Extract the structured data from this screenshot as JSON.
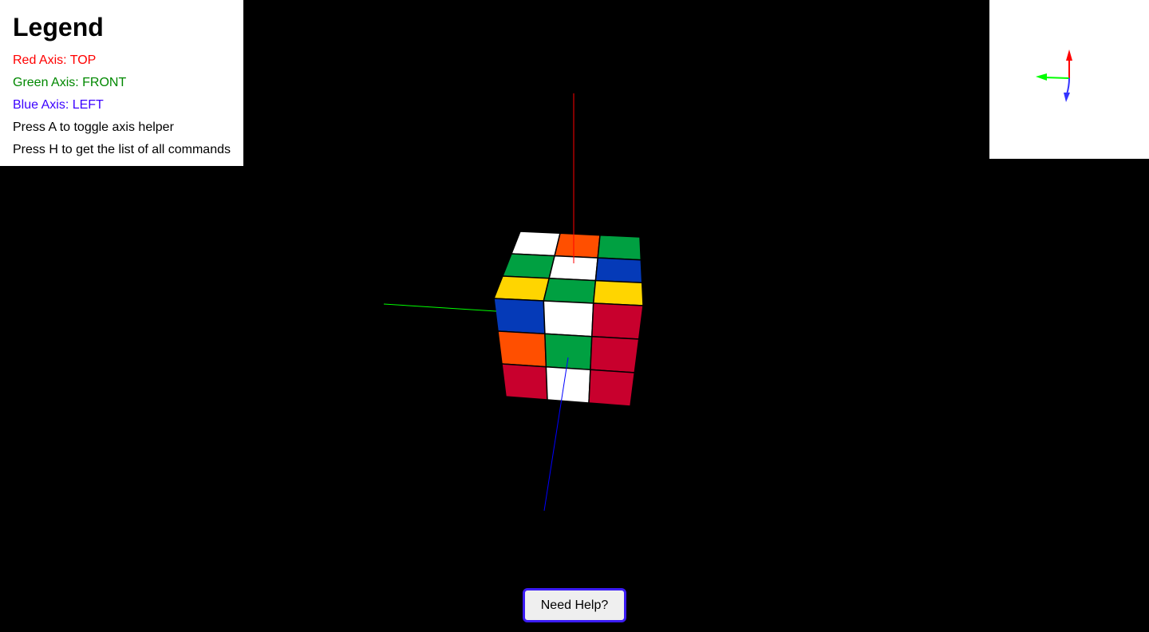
{
  "legend": {
    "title": "Legend",
    "lines": [
      {
        "text": "Red Axis: TOP",
        "color": "#ff0000"
      },
      {
        "text": "Green Axis: FRONT",
        "color": "#008800"
      },
      {
        "text": "Blue Axis: LEFT",
        "color": "#3b00ff"
      },
      {
        "text": "Press A to toggle axis helper",
        "color": "#000000"
      },
      {
        "text": "Press H to get the list of all commands",
        "color": "#000000"
      }
    ]
  },
  "help_button": {
    "label": "Need Help?"
  },
  "colors": {
    "background": "#000000",
    "sticker_white": "#ffffff",
    "sticker_orange": "#ff4f00",
    "sticker_green": "#00a041",
    "sticker_blue": "#053ab8",
    "sticker_yellow": "#ffd500",
    "sticker_red": "#c8002d",
    "axis_red": "#ff0000",
    "axis_green": "#00ff00",
    "axis_blue": "#0000ff"
  },
  "cube": {
    "top_face": [
      [
        "white",
        "orange",
        "green"
      ],
      [
        "green",
        "white",
        "blue"
      ],
      [
        "yellow",
        "green",
        "yellow"
      ]
    ],
    "front_face": [
      [
        "blue",
        "white",
        "red"
      ],
      [
        "orange",
        "green",
        "red"
      ],
      [
        "red",
        "white",
        "red"
      ]
    ]
  }
}
